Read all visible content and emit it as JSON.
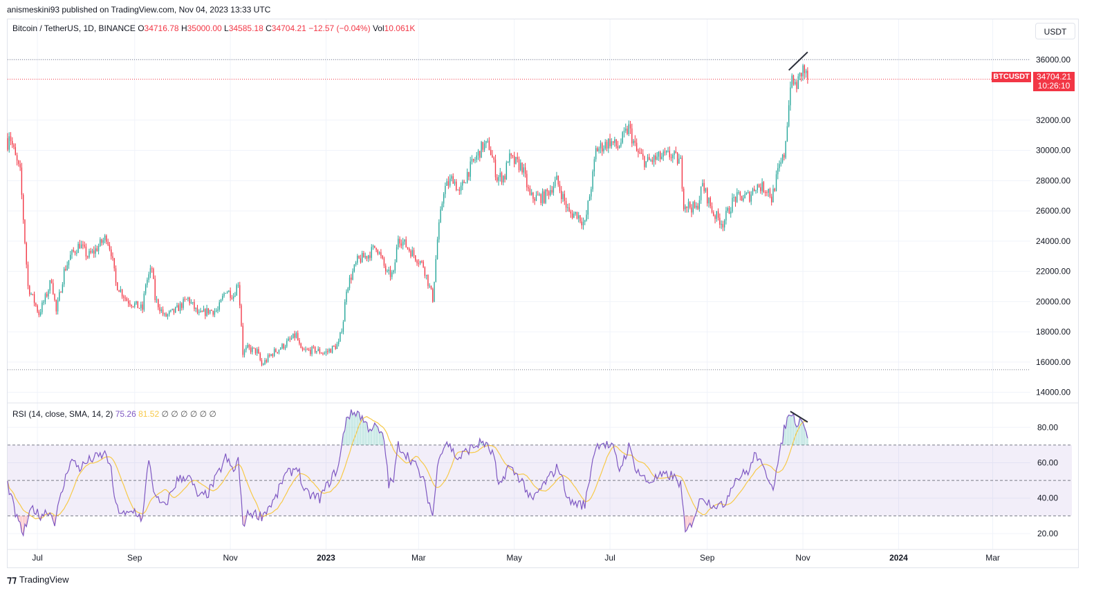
{
  "header": {
    "published": "anismeskini93 published on TradingView.com, Nov 04, 2023 13:33 UTC"
  },
  "legend": {
    "title": "Bitcoin / TetherUS, 1D, BINANCE",
    "o_label": "O",
    "o_value": "34716.78",
    "h_label": "H",
    "h_value": "35000.00",
    "l_label": "L",
    "l_value": "34585.18",
    "c_label": "C",
    "c_value": "34704.21",
    "change": "−12.57 (−0.04%)",
    "vol_label": "Vol",
    "vol_value": "10.061K"
  },
  "rsi_legend": {
    "title": "RSI (14, close, SMA, 14, 2)",
    "rsi_value": "75.26",
    "sma_value": "81.52",
    "nulls": "∅ ∅ ∅ ∅ ∅ ∅"
  },
  "currency_button": "USDT",
  "symbol_badge": "BTCUSDT",
  "price_badge": {
    "price": "34704.21",
    "countdown": "10:26:10"
  },
  "footer": {
    "brand": "TradingView",
    "icon": "tradingview-logo-icon"
  },
  "colors": {
    "up": "#26a69a",
    "down": "#f23645",
    "rsi": "#7e57c2",
    "sma": "#f7c948",
    "band": "#7e57c2"
  },
  "chart_data": [
    {
      "type": "candlestick",
      "title": "Bitcoin / TetherUS, 1D, BINANCE",
      "x_ticks": [
        "Jul",
        "Sep",
        "Nov",
        "2023",
        "Mar",
        "May",
        "Jul",
        "Sep",
        "Nov",
        "2024",
        "Mar"
      ],
      "x_tick_dates": [
        "2022-07-01",
        "2022-09-01",
        "2022-11-01",
        "2023-01-01",
        "2023-03-01",
        "2023-05-01",
        "2023-07-01",
        "2023-09-01",
        "2023-11-01",
        "2024-01-01",
        "2024-03-01"
      ],
      "x_range": [
        "2022-06-12",
        "2024-03-25"
      ],
      "y_ticks": [
        36000,
        32000,
        30000,
        28000,
        26000,
        24000,
        22000,
        20000,
        18000,
        16000,
        14000
      ],
      "y_tick_labels": [
        "36000.00",
        "32000.00",
        "30000.00",
        "28000.00",
        "26000.00",
        "24000.00",
        "22000.00",
        "20000.00",
        "18000.00",
        "16000.00",
        "14000.00"
      ],
      "y_range": [
        13300,
        37200
      ],
      "last_price": 34704.21,
      "horizontal_levels": [
        36000,
        15500
      ],
      "trendline": [
        [
          "2023-10-23",
          35300
        ],
        [
          "2023-11-04",
          36500
        ]
      ],
      "close_anchors": [
        [
          "2022-06-12",
          30500
        ],
        [
          "2022-06-13",
          31200
        ],
        [
          "2022-06-17",
          29500
        ],
        [
          "2022-06-20",
          28500
        ],
        [
          "2022-06-25",
          21000
        ],
        [
          "2022-06-29",
          20000
        ],
        [
          "2022-07-02",
          19200
        ],
        [
          "2022-07-07",
          20500
        ],
        [
          "2022-07-10",
          21500
        ],
        [
          "2022-07-13",
          19300
        ],
        [
          "2022-07-18",
          22000
        ],
        [
          "2022-07-22",
          23000
        ],
        [
          "2022-07-28",
          23800
        ],
        [
          "2022-08-02",
          23000
        ],
        [
          "2022-08-06",
          23300
        ],
        [
          "2022-08-10",
          23800
        ],
        [
          "2022-08-14",
          24300
        ],
        [
          "2022-08-17",
          23300
        ],
        [
          "2022-08-20",
          21200
        ],
        [
          "2022-08-27",
          20100
        ],
        [
          "2022-09-06",
          19500
        ],
        [
          "2022-09-08",
          21200
        ],
        [
          "2022-09-12",
          22200
        ],
        [
          "2022-09-14",
          20200
        ],
        [
          "2022-09-20",
          19000
        ],
        [
          "2022-09-27",
          19400
        ],
        [
          "2022-10-05",
          20200
        ],
        [
          "2022-10-12",
          19100
        ],
        [
          "2022-10-18",
          19400
        ],
        [
          "2022-10-24",
          19400
        ],
        [
          "2022-10-29",
          20800
        ],
        [
          "2022-11-03",
          20400
        ],
        [
          "2022-11-06",
          21300
        ],
        [
          "2022-11-08",
          18500
        ],
        [
          "2022-11-09",
          16600
        ],
        [
          "2022-11-12",
          16900
        ],
        [
          "2022-11-18",
          16700
        ],
        [
          "2022-11-21",
          15800
        ],
        [
          "2022-11-28",
          16600
        ],
        [
          "2022-12-05",
          17100
        ],
        [
          "2022-12-13",
          17800
        ],
        [
          "2022-12-16",
          16700
        ],
        [
          "2022-12-25",
          16800
        ],
        [
          "2022-12-31",
          16600
        ],
        [
          "2023-01-05",
          16900
        ],
        [
          "2023-01-09",
          17200
        ],
        [
          "2023-01-12",
          18800
        ],
        [
          "2023-01-14",
          20900
        ],
        [
          "2023-01-21",
          22700
        ],
        [
          "2023-01-28",
          23100
        ],
        [
          "2023-02-02",
          23700
        ],
        [
          "2023-02-09",
          21800
        ],
        [
          "2023-02-13",
          21800
        ],
        [
          "2023-02-16",
          24300
        ],
        [
          "2023-02-25",
          23200
        ],
        [
          "2023-03-04",
          22400
        ],
        [
          "2023-03-10",
          20200
        ],
        [
          "2023-03-13",
          24100
        ],
        [
          "2023-03-17",
          27400
        ],
        [
          "2023-03-23",
          28200
        ],
        [
          "2023-03-27",
          27100
        ],
        [
          "2023-04-01",
          28500
        ],
        [
          "2023-04-11",
          30300
        ],
        [
          "2023-04-15",
          30300
        ],
        [
          "2023-04-20",
          28200
        ],
        [
          "2023-04-25",
          28300
        ],
        [
          "2023-04-27",
          29500
        ],
        [
          "2023-05-06",
          28900
        ],
        [
          "2023-05-11",
          26900
        ],
        [
          "2023-05-20",
          26900
        ],
        [
          "2023-05-28",
          28000
        ],
        [
          "2023-06-05",
          25800
        ],
        [
          "2023-06-10",
          25800
        ],
        [
          "2023-06-15",
          25100
        ],
        [
          "2023-06-20",
          28300
        ],
        [
          "2023-06-22",
          30000
        ],
        [
          "2023-07-01",
          30600
        ],
        [
          "2023-07-06",
          30200
        ],
        [
          "2023-07-13",
          31500
        ],
        [
          "2023-07-18",
          29900
        ],
        [
          "2023-07-24",
          29200
        ],
        [
          "2023-08-01",
          29500
        ],
        [
          "2023-08-09",
          29700
        ],
        [
          "2023-08-15",
          29200
        ],
        [
          "2023-08-17",
          26500
        ],
        [
          "2023-08-25",
          26100
        ],
        [
          "2023-08-29",
          27700
        ],
        [
          "2023-09-05",
          25800
        ],
        [
          "2023-09-11",
          25200
        ],
        [
          "2023-09-18",
          26800
        ],
        [
          "2023-09-28",
          27000
        ],
        [
          "2023-10-02",
          27700
        ],
        [
          "2023-10-10",
          27400
        ],
        [
          "2023-10-12",
          26800
        ],
        [
          "2023-10-16",
          28500
        ],
        [
          "2023-10-20",
          29700
        ],
        [
          "2023-10-23",
          33000
        ],
        [
          "2023-10-24",
          34500
        ],
        [
          "2023-10-28",
          34300
        ],
        [
          "2023-11-01",
          35400
        ],
        [
          "2023-11-04",
          34704
        ]
      ]
    },
    {
      "type": "line",
      "title": "RSI (14, close, SMA, 14, 2)",
      "y_ticks": [
        80,
        60,
        40,
        20
      ],
      "y_tick_labels": [
        "80.00",
        "60.00",
        "40.00",
        "20.00"
      ],
      "y_range": [
        11,
        93
      ],
      "band": [
        30,
        70
      ],
      "midline": 50,
      "trendline": [
        [
          "2023-10-24",
          89
        ],
        [
          "2023-11-04",
          83
        ]
      ],
      "rsi_anchors": [
        [
          "2022-06-12",
          48
        ],
        [
          "2022-06-18",
          28
        ],
        [
          "2022-06-22",
          20
        ],
        [
          "2022-06-28",
          35
        ],
        [
          "2022-07-02",
          30
        ],
        [
          "2022-07-08",
          33
        ],
        [
          "2022-07-12",
          27
        ],
        [
          "2022-07-18",
          48
        ],
        [
          "2022-07-22",
          62
        ],
        [
          "2022-07-28",
          57
        ],
        [
          "2022-08-04",
          62
        ],
        [
          "2022-08-14",
          65
        ],
        [
          "2022-08-17",
          55
        ],
        [
          "2022-08-20",
          35
        ],
        [
          "2022-08-26",
          30
        ],
        [
          "2022-09-01",
          33
        ],
        [
          "2022-09-06",
          28
        ],
        [
          "2022-09-10",
          63
        ],
        [
          "2022-09-14",
          40
        ],
        [
          "2022-09-20",
          35
        ],
        [
          "2022-09-28",
          50
        ],
        [
          "2022-10-05",
          53
        ],
        [
          "2022-10-12",
          40
        ],
        [
          "2022-10-18",
          43
        ],
        [
          "2022-10-25",
          55
        ],
        [
          "2022-10-29",
          63
        ],
        [
          "2022-11-03",
          55
        ],
        [
          "2022-11-06",
          62
        ],
        [
          "2022-11-09",
          25
        ],
        [
          "2022-11-13",
          32
        ],
        [
          "2022-11-21",
          30
        ],
        [
          "2022-11-30",
          40
        ],
        [
          "2022-12-05",
          52
        ],
        [
          "2022-12-14",
          58
        ],
        [
          "2022-12-18",
          43
        ],
        [
          "2022-12-28",
          40
        ],
        [
          "2023-01-05",
          52
        ],
        [
          "2023-01-09",
          58
        ],
        [
          "2023-01-14",
          86
        ],
        [
          "2023-01-21",
          89
        ],
        [
          "2023-01-28",
          80
        ],
        [
          "2023-02-02",
          80
        ],
        [
          "2023-02-07",
          73
        ],
        [
          "2023-02-10",
          48
        ],
        [
          "2023-02-13",
          50
        ],
        [
          "2023-02-16",
          70
        ],
        [
          "2023-02-26",
          60
        ],
        [
          "2023-03-04",
          50
        ],
        [
          "2023-03-10",
          30
        ],
        [
          "2023-03-14",
          65
        ],
        [
          "2023-03-19",
          72
        ],
        [
          "2023-03-26",
          62
        ],
        [
          "2023-04-01",
          67
        ],
        [
          "2023-04-11",
          72
        ],
        [
          "2023-04-18",
          64
        ],
        [
          "2023-04-21",
          45
        ],
        [
          "2023-04-27",
          58
        ],
        [
          "2023-05-06",
          50
        ],
        [
          "2023-05-12",
          38
        ],
        [
          "2023-05-20",
          48
        ],
        [
          "2023-05-29",
          58
        ],
        [
          "2023-06-05",
          38
        ],
        [
          "2023-06-15",
          36
        ],
        [
          "2023-06-21",
          67
        ],
        [
          "2023-06-25",
          72
        ],
        [
          "2023-07-03",
          68
        ],
        [
          "2023-07-07",
          56
        ],
        [
          "2023-07-13",
          69
        ],
        [
          "2023-07-18",
          56
        ],
        [
          "2023-07-25",
          49
        ],
        [
          "2023-08-01",
          52
        ],
        [
          "2023-08-09",
          53
        ],
        [
          "2023-08-15",
          48
        ],
        [
          "2023-08-18",
          20
        ],
        [
          "2023-08-21",
          24
        ],
        [
          "2023-08-29",
          42
        ],
        [
          "2023-09-01",
          38
        ],
        [
          "2023-09-11",
          35
        ],
        [
          "2023-09-18",
          50
        ],
        [
          "2023-09-28",
          56
        ],
        [
          "2023-10-02",
          66
        ],
        [
          "2023-10-06",
          57
        ],
        [
          "2023-10-10",
          52
        ],
        [
          "2023-10-13",
          47
        ],
        [
          "2023-10-17",
          63
        ],
        [
          "2023-10-20",
          79
        ],
        [
          "2023-10-24",
          89
        ],
        [
          "2023-10-28",
          83
        ],
        [
          "2023-11-01",
          85
        ],
        [
          "2023-11-04",
          75
        ]
      ]
    }
  ]
}
